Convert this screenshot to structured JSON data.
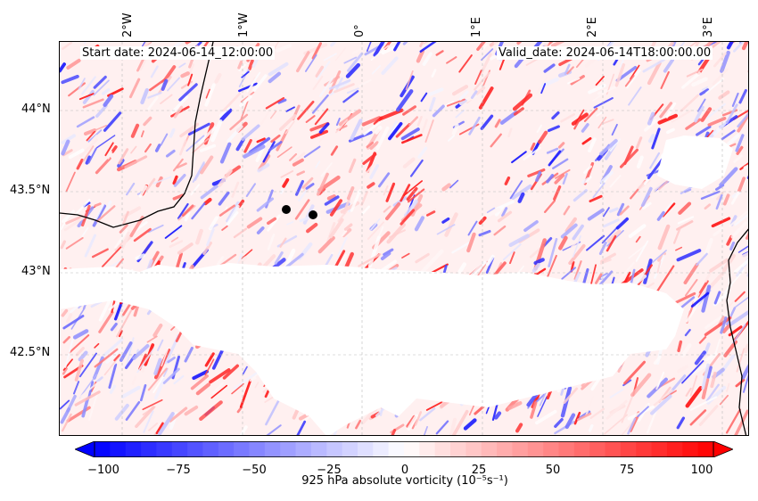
{
  "annotations": {
    "start_date": "Start date: 2024-06-14_12:00:00",
    "valid_date": "Valid_date: 2024-06-14T18:00:00.00"
  },
  "map": {
    "lon_labels": [
      "2°W",
      "1°W",
      "0°",
      "1°E",
      "2°E",
      "3°E"
    ],
    "lat_labels": [
      "44°N",
      "43.5°N",
      "43°N",
      "42.5°N"
    ],
    "field": "925 hPa absolute vorticity",
    "markers_count": 2,
    "colormap": "bwr",
    "colors": {
      "negative": "#0000ff",
      "zero": "#ffffff",
      "positive": "#ff0000",
      "coastline": "#000000",
      "marker": "#000000"
    }
  },
  "colorbar": {
    "ticks": [
      "−100",
      "−75",
      "−50",
      "−25",
      "0",
      "25",
      "50",
      "75",
      "100"
    ],
    "label": "925 hPa absolute vorticity (10⁻⁵s⁻¹)",
    "range": [
      -100,
      100
    ]
  }
}
